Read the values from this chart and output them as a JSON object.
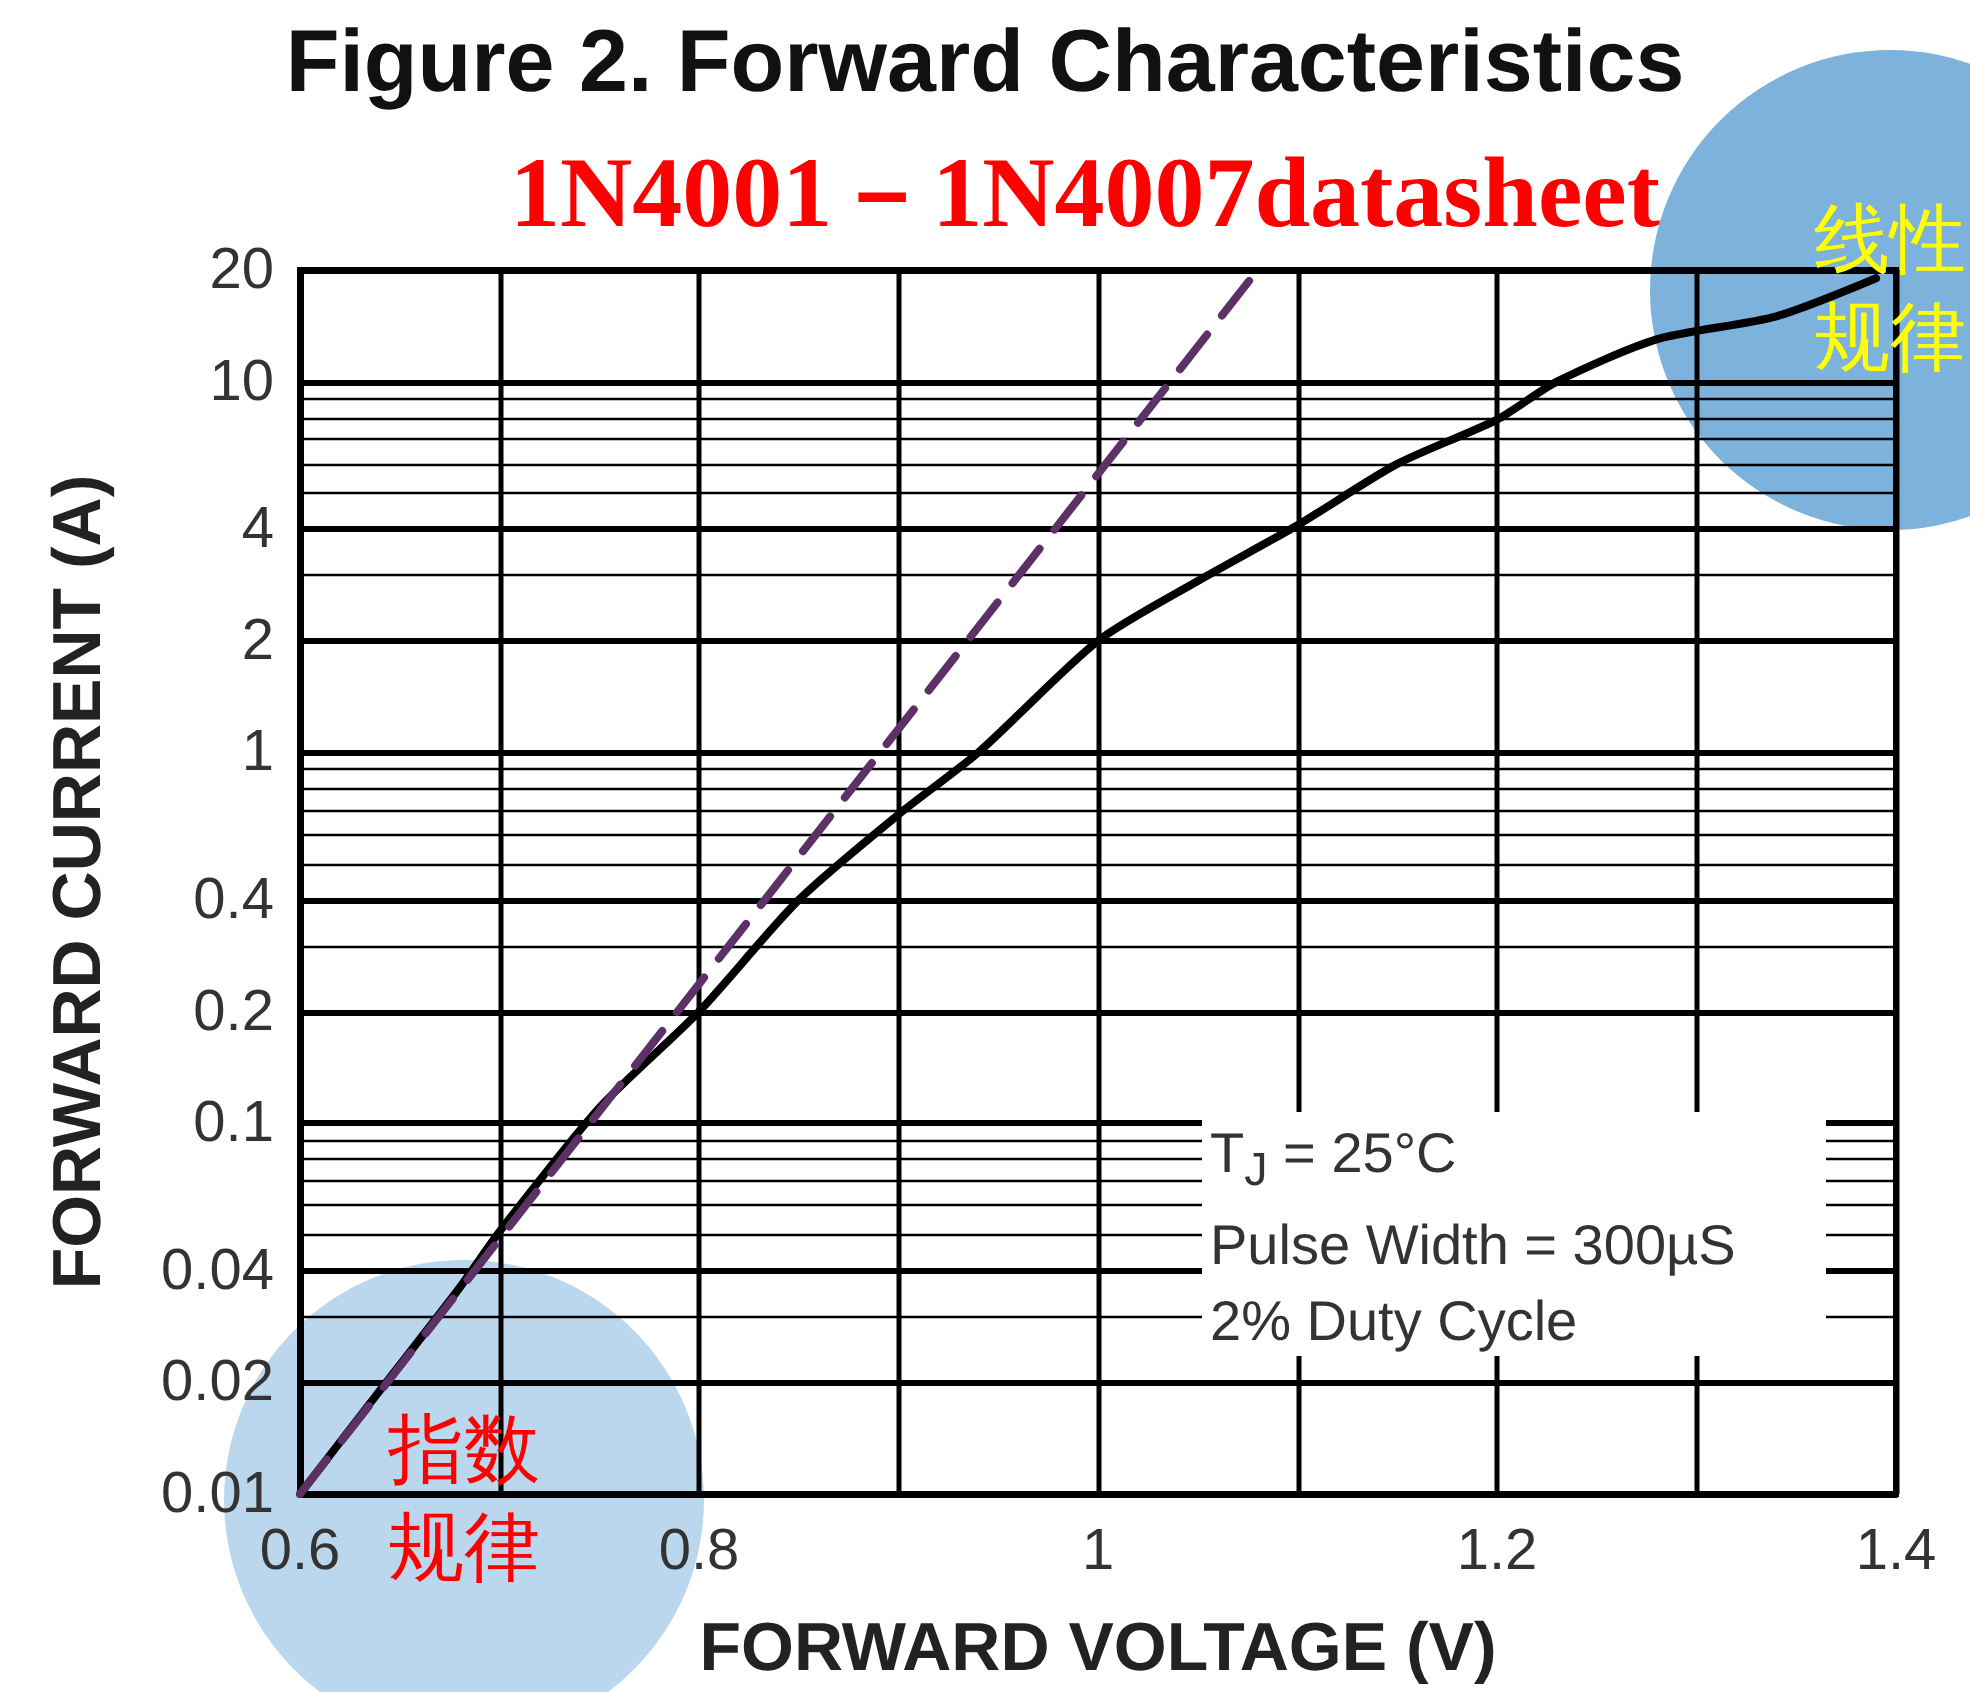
{
  "chart_data": {
    "type": "line",
    "title": "Figure 2. Forward Characteristics",
    "subtitle": "1N4001－1N4007datasheet",
    "xlabel": "FORWARD VOLTAGE (V)",
    "ylabel": "FORWARD CURRENT (A)",
    "series": [
      {
        "color": "#000000",
        "x": [
          0.6,
          0.64,
          0.68,
          0.7,
          0.75,
          0.8,
          0.85,
          0.9,
          0.94,
          1.0,
          1.05,
          1.1,
          1.15,
          1.2,
          1.23,
          1.28,
          1.34,
          1.39
        ],
        "values": [
          0.01,
          0.019,
          0.036,
          0.051,
          0.11,
          0.2,
          0.4,
          0.68,
          1,
          2,
          2.9,
          4.1,
          6,
          7.9,
          10,
          13,
          15,
          19
        ]
      },
      {
        "color": "#5b3166",
        "line_style": "dashed",
        "x": [
          0.6,
          1.08
        ],
        "values": [
          0.01,
          20
        ]
      }
    ],
    "xlim": [
      0.6,
      1.4
    ],
    "xticks": [
      0.6,
      {
        "value": 0.7,
        "label": null
      },
      0.8,
      {
        "value": 0.9,
        "label": null
      },
      1,
      {
        "value": 1.1,
        "label": null
      },
      1.2,
      {
        "value": 1.3,
        "label": null
      },
      1.4
    ],
    "ylim": [
      0.01,
      20
    ],
    "yticks": [
      0.01,
      0.02,
      0.04,
      0.1,
      0.2,
      0.4,
      1,
      2,
      4,
      10,
      20
    ],
    "log": true,
    "grid": true,
    "annotations": [
      "T$_{J}$ = 25°C",
      "Pulse Width = 300µS",
      "2% Duty Cycle",
      "指数规律",
      "线性规律"
    ]
  }
}
